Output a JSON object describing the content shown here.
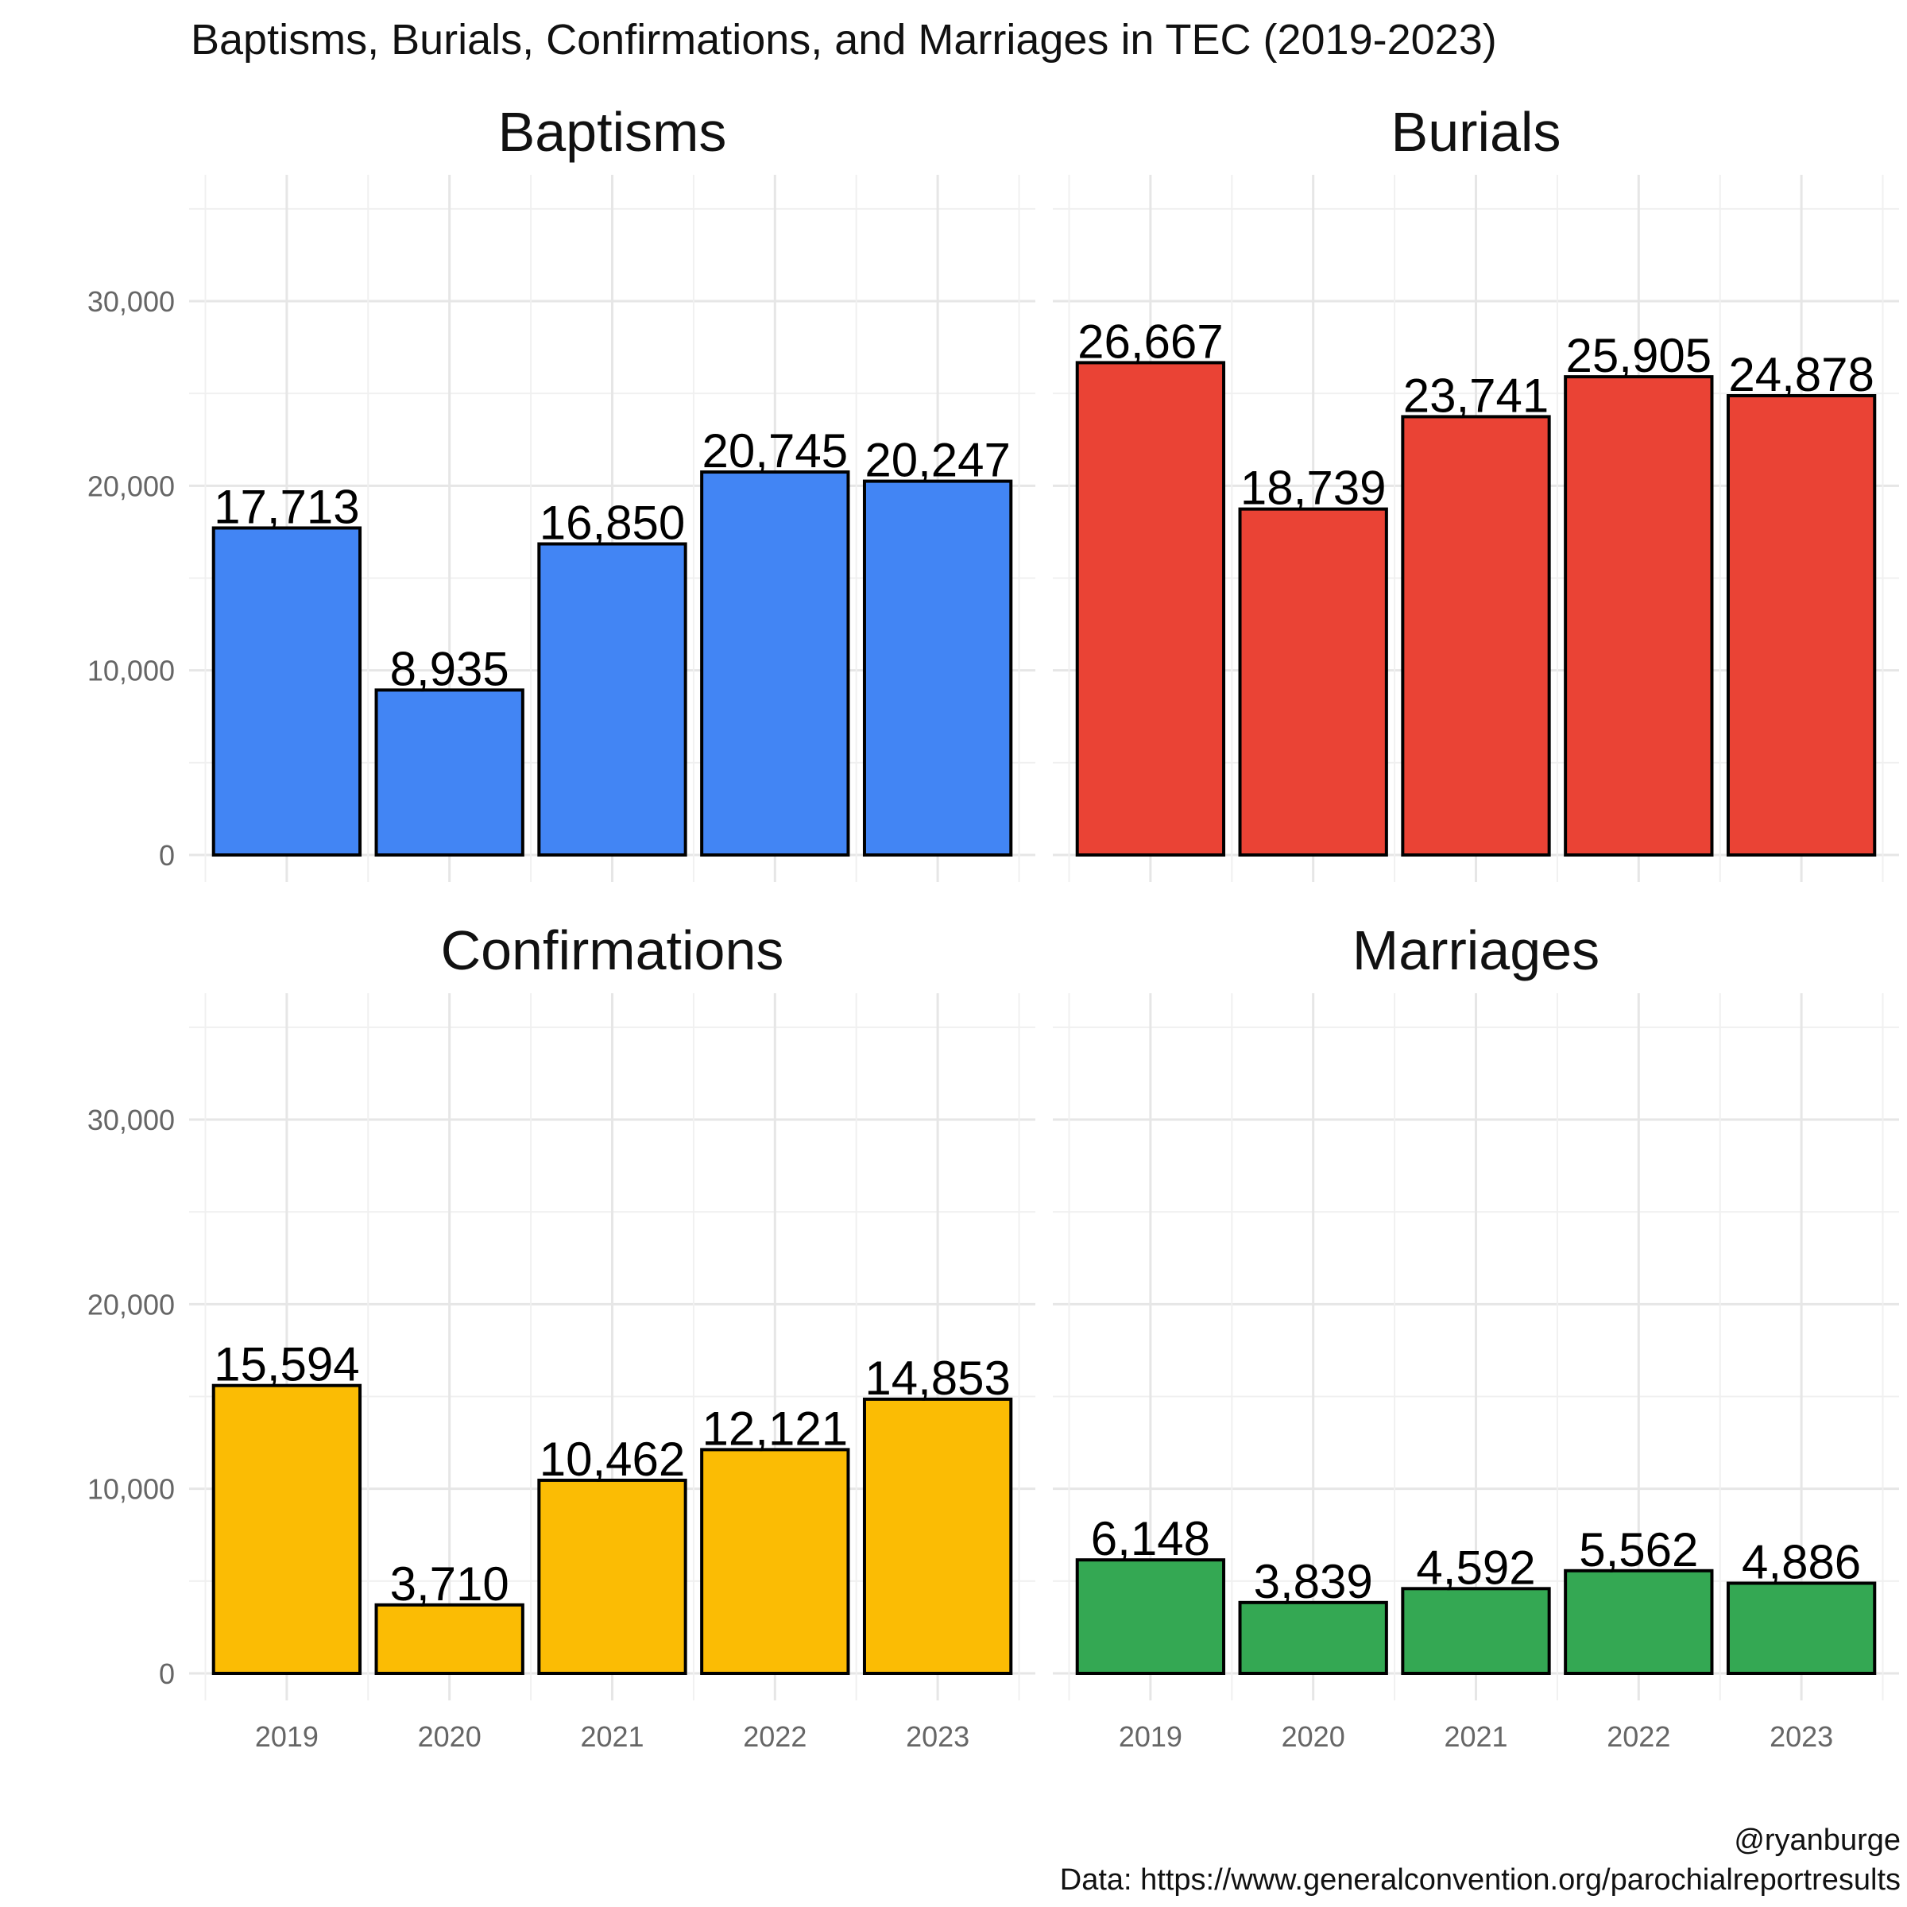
{
  "title": "Baptisms, Burials, Confirmations, and Marriages in TEC (2019-2023)",
  "caption": {
    "line1": "@ryanburge",
    "line2": "Data: https://www.generalconvention.org/parochialreportresults"
  },
  "chart_data": {
    "type": "bar",
    "layout": "facet 2x2",
    "categories": [
      "2019",
      "2020",
      "2021",
      "2022",
      "2023"
    ],
    "ylim": [
      0,
      36000
    ],
    "yticks": [
      0,
      10000,
      20000,
      30000
    ],
    "ytick_labels": [
      "0",
      "10,000",
      "20,000",
      "30,000"
    ],
    "grid": true,
    "legend": "none",
    "panels": [
      {
        "name": "Baptisms",
        "color": "#4285f4",
        "values": [
          17713,
          8935,
          16850,
          20745,
          20247
        ],
        "labels": [
          "17,713",
          "8,935",
          "16,850",
          "20,745",
          "20,247"
        ]
      },
      {
        "name": "Burials",
        "color": "#ea4335",
        "values": [
          26667,
          18739,
          23741,
          25905,
          24878
        ],
        "labels": [
          "26,667",
          "18,739",
          "23,741",
          "25,905",
          "24,878"
        ]
      },
      {
        "name": "Confirmations",
        "color": "#fbbc04",
        "values": [
          15594,
          3710,
          10462,
          12121,
          14853
        ],
        "labels": [
          "15,594",
          "3,710",
          "10,462",
          "12,121",
          "14,853"
        ]
      },
      {
        "name": "Marriages",
        "color": "#34a853",
        "values": [
          6148,
          3839,
          4592,
          5562,
          4886
        ],
        "labels": [
          "6,148",
          "3,839",
          "4,592",
          "5,562",
          "4,886"
        ]
      }
    ]
  }
}
